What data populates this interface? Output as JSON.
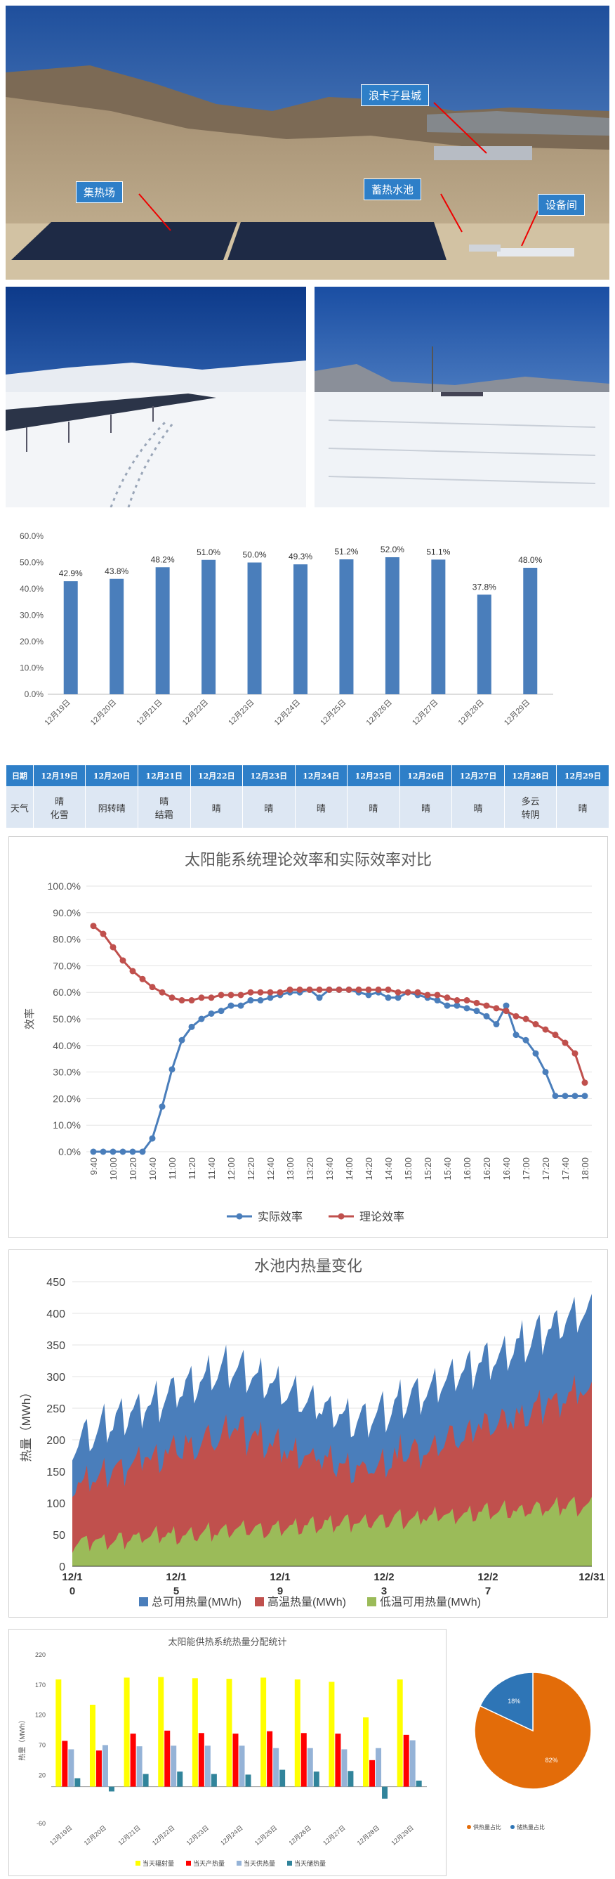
{
  "photo_labels": {
    "county": "浪卡子县城",
    "field": "集热场",
    "pool": "蓄热水池",
    "room": "设备间"
  },
  "chart_data": [
    {
      "id": "daily_eff",
      "type": "bar",
      "categories": [
        "12月19日",
        "12月20日",
        "12月21日",
        "12月22日",
        "12月23日",
        "12月24日",
        "12月25日",
        "12月26日",
        "12月27日",
        "12月28日",
        "12月29日"
      ],
      "values": [
        42.9,
        43.8,
        48.2,
        51.0,
        50.0,
        49.3,
        51.2,
        52.0,
        51.1,
        37.8,
        48.0
      ],
      "data_labels": [
        "42.9%",
        "43.8%",
        "48.2%",
        "51.0%",
        "50.0%",
        "49.3%",
        "51.2%",
        "52.0%",
        "51.1%",
        "37.8%",
        "48.0%"
      ],
      "yticks": [
        "0.0%",
        "10.0%",
        "20.0%",
        "30.0%",
        "40.0%",
        "50.0%",
        "60.0%"
      ],
      "ylim": [
        0,
        60
      ],
      "color": "#4a7ebb"
    },
    {
      "id": "eff_compare",
      "type": "line",
      "title": "太阳能系统理论效率和实际效率对比",
      "ylabel": "效率",
      "ylim": [
        0,
        100
      ],
      "yticks": [
        "0.0%",
        "10.0%",
        "20.0%",
        "30.0%",
        "40.0%",
        "50.0%",
        "60.0%",
        "70.0%",
        "80.0%",
        "90.0%",
        "100.0%"
      ],
      "xtick_labels": [
        "9:40",
        "10:00",
        "10:20",
        "10:40",
        "11:00",
        "11:20",
        "11:40",
        "12:00",
        "12:20",
        "12:40",
        "13:00",
        "13:20",
        "13:40",
        "14:00",
        "14:20",
        "14:40",
        "15:00",
        "15:20",
        "15:40",
        "16:00",
        "16:20",
        "16:40",
        "17:00",
        "17:20",
        "17:40",
        "18:00"
      ],
      "series": [
        {
          "name": "实际效率",
          "color": "#4a7ebb",
          "values": [
            0,
            0,
            0,
            0,
            0,
            0,
            5,
            17,
            31,
            42,
            47,
            50,
            52,
            53,
            55,
            55,
            57,
            57,
            58,
            59,
            60,
            60,
            61,
            58,
            61,
            61,
            61,
            60,
            59,
            60,
            58,
            58,
            60,
            59,
            58,
            57,
            55,
            55,
            54,
            53,
            51,
            48,
            55,
            44,
            42,
            37,
            30,
            21,
            21,
            21,
            21
          ]
        },
        {
          "name": "理论效率",
          "color": "#c0504d",
          "values": [
            85,
            82,
            77,
            72,
            68,
            65,
            62,
            60,
            58,
            57,
            57,
            58,
            58,
            59,
            59,
            59,
            60,
            60,
            60,
            60,
            61,
            61,
            61,
            61,
            61,
            61,
            61,
            61,
            61,
            61,
            61,
            60,
            60,
            60,
            59,
            59,
            58,
            57,
            57,
            56,
            55,
            54,
            53,
            51,
            50,
            48,
            46,
            44,
            41,
            37,
            26
          ]
        }
      ]
    },
    {
      "id": "pool_heat",
      "type": "area",
      "title": "水池内热量变化",
      "ylabel": "热量（MWh）",
      "ylim": [
        0,
        450
      ],
      "yticks": [
        "0",
        "50",
        "100",
        "150",
        "200",
        "250",
        "300",
        "350",
        "400",
        "450"
      ],
      "xtick_labels": [
        [
          "12/1",
          "0"
        ],
        [
          "12/1",
          "5"
        ],
        [
          "12/1",
          "9"
        ],
        [
          "12/2",
          "3"
        ],
        [
          "12/2",
          "7"
        ],
        [
          "12/31"
        ]
      ],
      "series": [
        {
          "name": "总可用热量(MWh)",
          "color": "#4a7ebb"
        },
        {
          "name": "高温热量(MWh)",
          "color": "#c0504d"
        },
        {
          "name": "低温可用热量(MWh)",
          "color": "#9bbb59"
        }
      ]
    },
    {
      "id": "heat_dist",
      "type": "bar",
      "title": "太阳能供热系统热量分配统计",
      "ylabel": "热量（MWh）",
      "ylim": [
        -60,
        220
      ],
      "yticks": [
        "-60",
        "20",
        "70",
        "120",
        "170",
        "220"
      ],
      "categories": [
        "12月19日",
        "12月20日",
        "12月21日",
        "12月22日",
        "12月23日",
        "12月24日",
        "12月25日",
        "12月26日",
        "12月27日",
        "12月28日",
        "12月29日"
      ],
      "series": [
        {
          "name": "当天辐射量",
          "color": "#ffff00",
          "values": [
            178,
            136,
            181,
            182,
            180,
            179,
            181,
            178,
            174,
            115,
            178
          ]
        },
        {
          "name": "当天产热量",
          "color": "#ff0000",
          "values": [
            76,
            60,
            88,
            93,
            89,
            88,
            92,
            89,
            88,
            44,
            86
          ]
        },
        {
          "name": "当天供热量",
          "color": "#95b3d7",
          "values": [
            62,
            69,
            67,
            68,
            68,
            68,
            64,
            64,
            62,
            64,
            77
          ]
        },
        {
          "name": "当天储热量",
          "color": "#31849b",
          "values": [
            14,
            -8,
            21,
            25,
            21,
            20,
            28,
            25,
            26,
            -20,
            10
          ]
        }
      ]
    },
    {
      "id": "supply_pie",
      "type": "pie",
      "labels": [
        "供热量占比",
        "储热量占比"
      ],
      "values": [
        82,
        18
      ],
      "value_labels": [
        "82%",
        "18%"
      ],
      "colors": [
        "#e36c09",
        "#2e75b6"
      ]
    }
  ],
  "weather_table": {
    "header": [
      "日期",
      "12月19日",
      "12月20日",
      "12月21日",
      "12月22日",
      "12月23日",
      "12月24日",
      "12月25日",
      "12月26日",
      "12月27日",
      "12月28日",
      "12月29日"
    ],
    "row": [
      "天气",
      "晴\n化雪",
      "阴转晴",
      "晴\n结霜",
      "晴",
      "晴",
      "晴",
      "晴",
      "晴",
      "晴",
      "多云\n转阴",
      "晴"
    ]
  }
}
